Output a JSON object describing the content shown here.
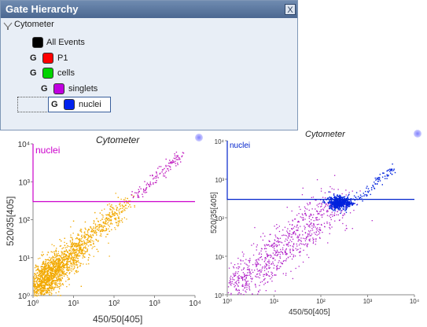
{
  "panel": {
    "title": "Gate Hierarchy",
    "close_label": "X",
    "root_label": "Cytometer",
    "nodes": [
      {
        "g": "",
        "color": "#000000",
        "label": "All Events"
      },
      {
        "g": "G",
        "color": "#ff0000",
        "label": "P1"
      },
      {
        "g": "G",
        "color": "#00d400",
        "label": "cells"
      },
      {
        "g": "G",
        "color": "#c000e0",
        "label": "singlets"
      },
      {
        "g": "G",
        "color": "#0022ee",
        "label": "nuclei"
      }
    ]
  },
  "plots": [
    {
      "title": "Cytometer",
      "gate_label": "nuclei",
      "gate_color": "#cc00cc",
      "xlabel": "450/50[405]",
      "ylabel": "520/35[405]",
      "xticks": [
        "10⁰",
        "10¹",
        "10²",
        "10³",
        "10⁴"
      ],
      "yticks": [
        "10⁰",
        "10¹",
        "10²",
        "10³",
        "10⁴"
      ],
      "main_color": "#f2a900",
      "sub_color": "#c020c0"
    },
    {
      "title": "Cytometer",
      "gate_label": "nuclei",
      "gate_color": "#0022cc",
      "xlabel": "450/50[405]",
      "ylabel": "520/35[405]",
      "xticks": [
        "10⁰",
        "10¹",
        "10²",
        "10³",
        "10⁴"
      ],
      "yticks": [
        "10⁰",
        "10¹",
        "10²",
        "10³",
        "10⁴"
      ],
      "main_color": "#b020c8",
      "sub_color": "#0022dd"
    }
  ],
  "chart_data": [
    {
      "type": "scatter",
      "title": "Cytometer",
      "xlabel": "450/50[405]",
      "ylabel": "520/35[405]",
      "x_scale": "log",
      "y_scale": "log",
      "xlim": [
        1,
        10000
      ],
      "ylim": [
        1,
        10000
      ],
      "gate": {
        "name": "nuclei",
        "x_range": [
          1,
          10000
        ],
        "y_range": [
          300,
          10000
        ]
      },
      "series": [
        {
          "name": "P1",
          "color": "#f2a900",
          "points": [
            [
              2,
              3
            ],
            [
              5,
              8
            ],
            [
              10,
              15
            ],
            [
              20,
              25
            ],
            [
              50,
              60
            ],
            [
              100,
              120
            ],
            [
              200,
              200
            ]
          ]
        },
        {
          "name": "nuclei",
          "color": "#c020c0",
          "points": [
            [
              400,
              600
            ],
            [
              1000,
              1300
            ],
            [
              2000,
              2500
            ],
            [
              5000,
              5500
            ]
          ]
        }
      ]
    },
    {
      "type": "scatter",
      "title": "Cytometer",
      "xlabel": "450/50[405]",
      "ylabel": "520/35[405]",
      "x_scale": "log",
      "y_scale": "log",
      "xlim": [
        1,
        10000
      ],
      "ylim": [
        1,
        10000
      ],
      "gate": {
        "name": "nuclei",
        "x_range": [
          1,
          10000
        ],
        "y_range": [
          300,
          10000
        ]
      },
      "series": [
        {
          "name": "singlets",
          "color": "#b020c8",
          "points": [
            [
              1.5,
              2
            ],
            [
              5,
              6
            ],
            [
              20,
              25
            ],
            [
              80,
              90
            ],
            [
              200,
              250
            ]
          ]
        },
        {
          "name": "nuclei",
          "color": "#0022dd",
          "points": [
            [
              400,
              500
            ],
            [
              600,
              700
            ],
            [
              1000,
              1100
            ],
            [
              2500,
              2800
            ]
          ]
        }
      ]
    }
  ]
}
